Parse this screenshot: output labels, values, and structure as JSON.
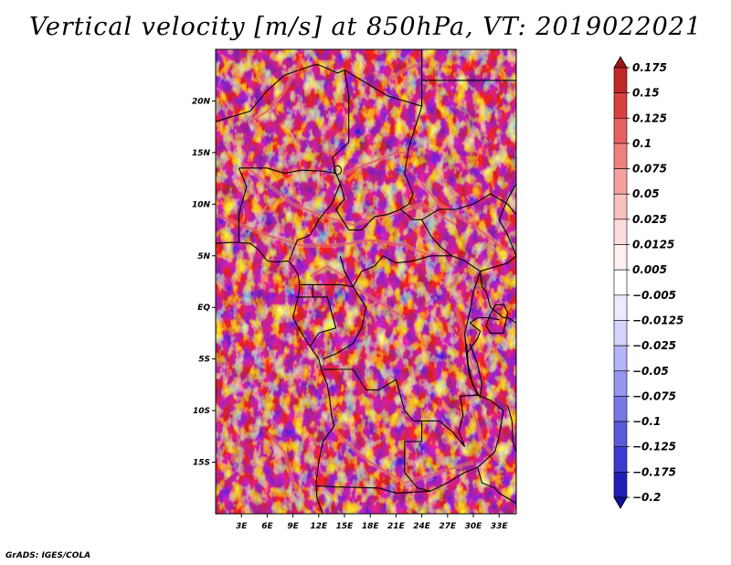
{
  "title": "Vertical velocity [m/s] at 850hPa, VT: 2019022021",
  "credit": "GrADS: IGES/COLA",
  "map": {
    "region": "Central Africa",
    "field": "Vertical velocity",
    "units": "m/s",
    "level": "850hPa",
    "lon_range": [
      0,
      35
    ],
    "lat_range": [
      -20,
      25
    ],
    "x_ticks": [
      "3E",
      "6E",
      "9E",
      "12E",
      "15E",
      "18E",
      "21E",
      "24E",
      "27E",
      "30E",
      "33E"
    ],
    "x_tick_values": [
      3,
      6,
      9,
      12,
      15,
      18,
      21,
      24,
      27,
      30,
      33
    ],
    "y_ticks": [
      "20N",
      "15N",
      "10N",
      "5N",
      "EQ",
      "5S",
      "10S",
      "15S"
    ],
    "y_tick_values": [
      20,
      15,
      10,
      5,
      0,
      -5,
      -10,
      -15
    ]
  },
  "colorbar": {
    "labels": [
      "0.175",
      "0.15",
      "0.125",
      "0.1",
      "0.075",
      "0.05",
      "0.025",
      "0.0125",
      "0.005",
      "−0.005",
      "−0.0125",
      "−0.025",
      "−0.05",
      "−0.075",
      "−0.1",
      "−0.125",
      "−0.175",
      "−0.2"
    ],
    "colors": [
      "#a01818",
      "#c02828",
      "#d84040",
      "#e86060",
      "#f08080",
      "#f4a0a0",
      "#f8c0c0",
      "#fcdcdc",
      "#fff0f0",
      "#ffffff",
      "#ececff",
      "#d4d4ff",
      "#b4b4f8",
      "#9696f0",
      "#7878e6",
      "#5a5adc",
      "#3c3cd0",
      "#2020b8",
      "#101098"
    ]
  }
}
